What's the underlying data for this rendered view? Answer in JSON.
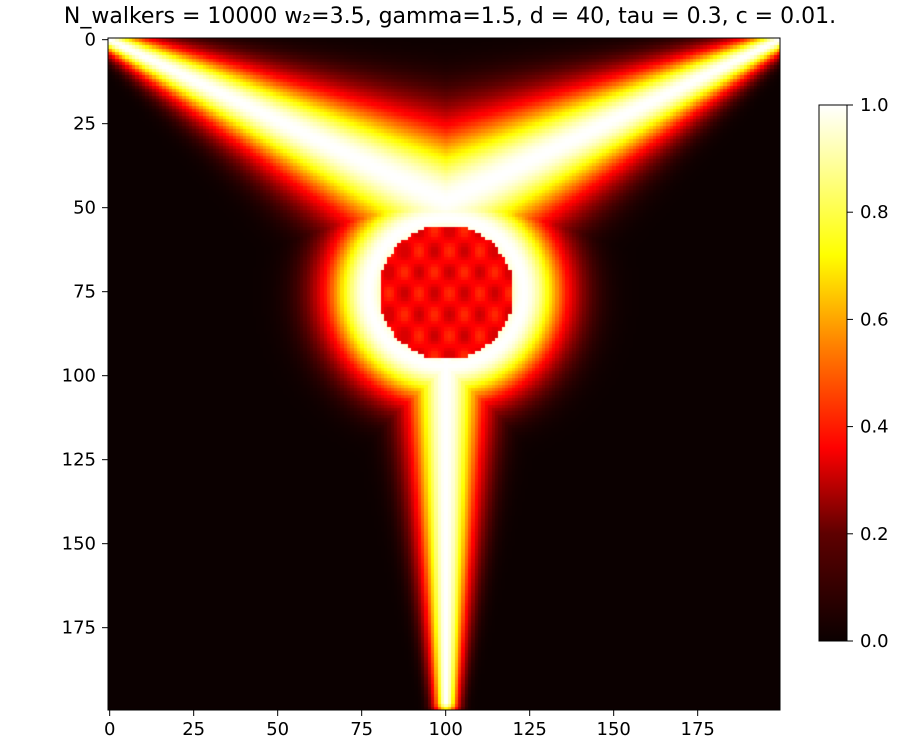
{
  "chart_data": {
    "type": "heatmap",
    "title": "N_walkers = 10000 w₂=3.5, gamma=1.5, d = 40, tau = 0.3, c = 0.01.",
    "xlabel": "",
    "ylabel": "",
    "grid_size": [
      200,
      200
    ],
    "xlim": [
      0,
      199
    ],
    "ylim": [
      199,
      0
    ],
    "y_axis_inverted": true,
    "xticks": [
      0,
      25,
      50,
      75,
      100,
      125,
      150,
      175
    ],
    "yticks": [
      0,
      25,
      50,
      75,
      100,
      125,
      150,
      175
    ],
    "colormap": "hot",
    "colorbar": {
      "range": [
        0.0,
        1.0
      ],
      "ticks": [
        "0.0",
        "0.2",
        "0.4",
        "0.6",
        "0.8",
        "1.0"
      ]
    },
    "features": [
      {
        "name": "left arm",
        "from": [
          0,
          0
        ],
        "to": [
          100,
          48
        ],
        "peak_value": 1.0
      },
      {
        "name": "right arm",
        "from": [
          199,
          0
        ],
        "to": [
          100,
          48
        ],
        "peak_value": 1.0
      },
      {
        "name": "central ring",
        "center": [
          100,
          75
        ],
        "radius": 22,
        "peak_value": 1.0
      },
      {
        "name": "central hole",
        "center": [
          100,
          75
        ],
        "value": 0.35
      },
      {
        "name": "bottom stem",
        "from": [
          100,
          95
        ],
        "to": [
          100,
          197
        ],
        "peak_value": 1.0
      }
    ],
    "background_value": 0.0
  }
}
